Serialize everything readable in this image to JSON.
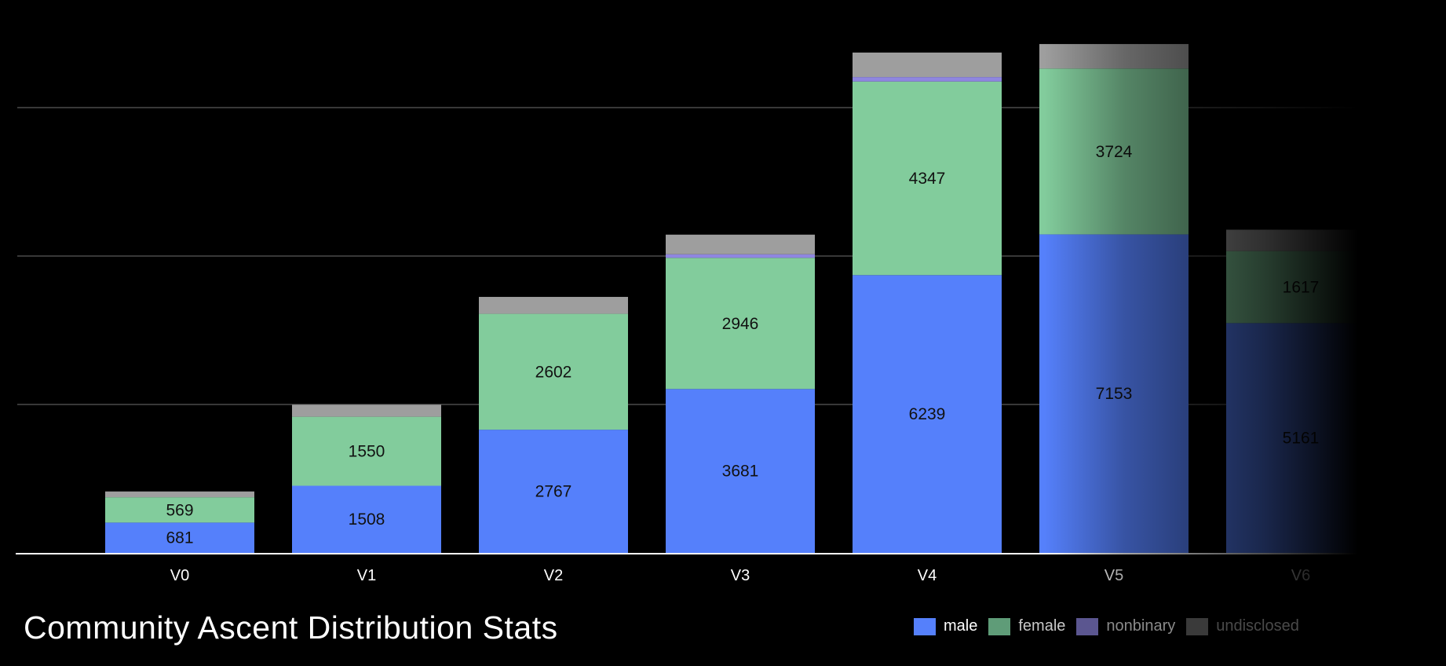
{
  "chart_data": {
    "type": "bar",
    "stacked": true,
    "title": "Community Ascent Distribution Stats",
    "categories": [
      "V0",
      "V1",
      "V2",
      "V3",
      "V4",
      "V5",
      "V6"
    ],
    "series": [
      {
        "name": "male",
        "color": "#5580fb",
        "values": [
          681,
          1508,
          2767,
          3681,
          6239,
          7153,
          5161
        ]
      },
      {
        "name": "female",
        "color": "#82cc9c",
        "values": [
          569,
          1550,
          2602,
          2946,
          4347,
          3724,
          1617
        ]
      },
      {
        "name": "nonbinary",
        "color": "#8f86e0",
        "values": [
          0,
          0,
          0,
          80,
          100,
          0,
          0
        ]
      },
      {
        "name": "undisclosed",
        "color": "#9e9e9e",
        "values": [
          130,
          270,
          380,
          440,
          550,
          550,
          480
        ]
      }
    ],
    "ylim": [
      0,
      11000
    ],
    "grid": true,
    "legend": "bottom-right"
  },
  "legend": {
    "items": [
      {
        "label": "male",
        "color": "#5580fb"
      },
      {
        "label": "female",
        "color": "#5f9c78"
      },
      {
        "label": "nonbinary",
        "color": "#5b5690"
      },
      {
        "label": "undisclosed",
        "color": "#3a3a3a"
      }
    ]
  }
}
